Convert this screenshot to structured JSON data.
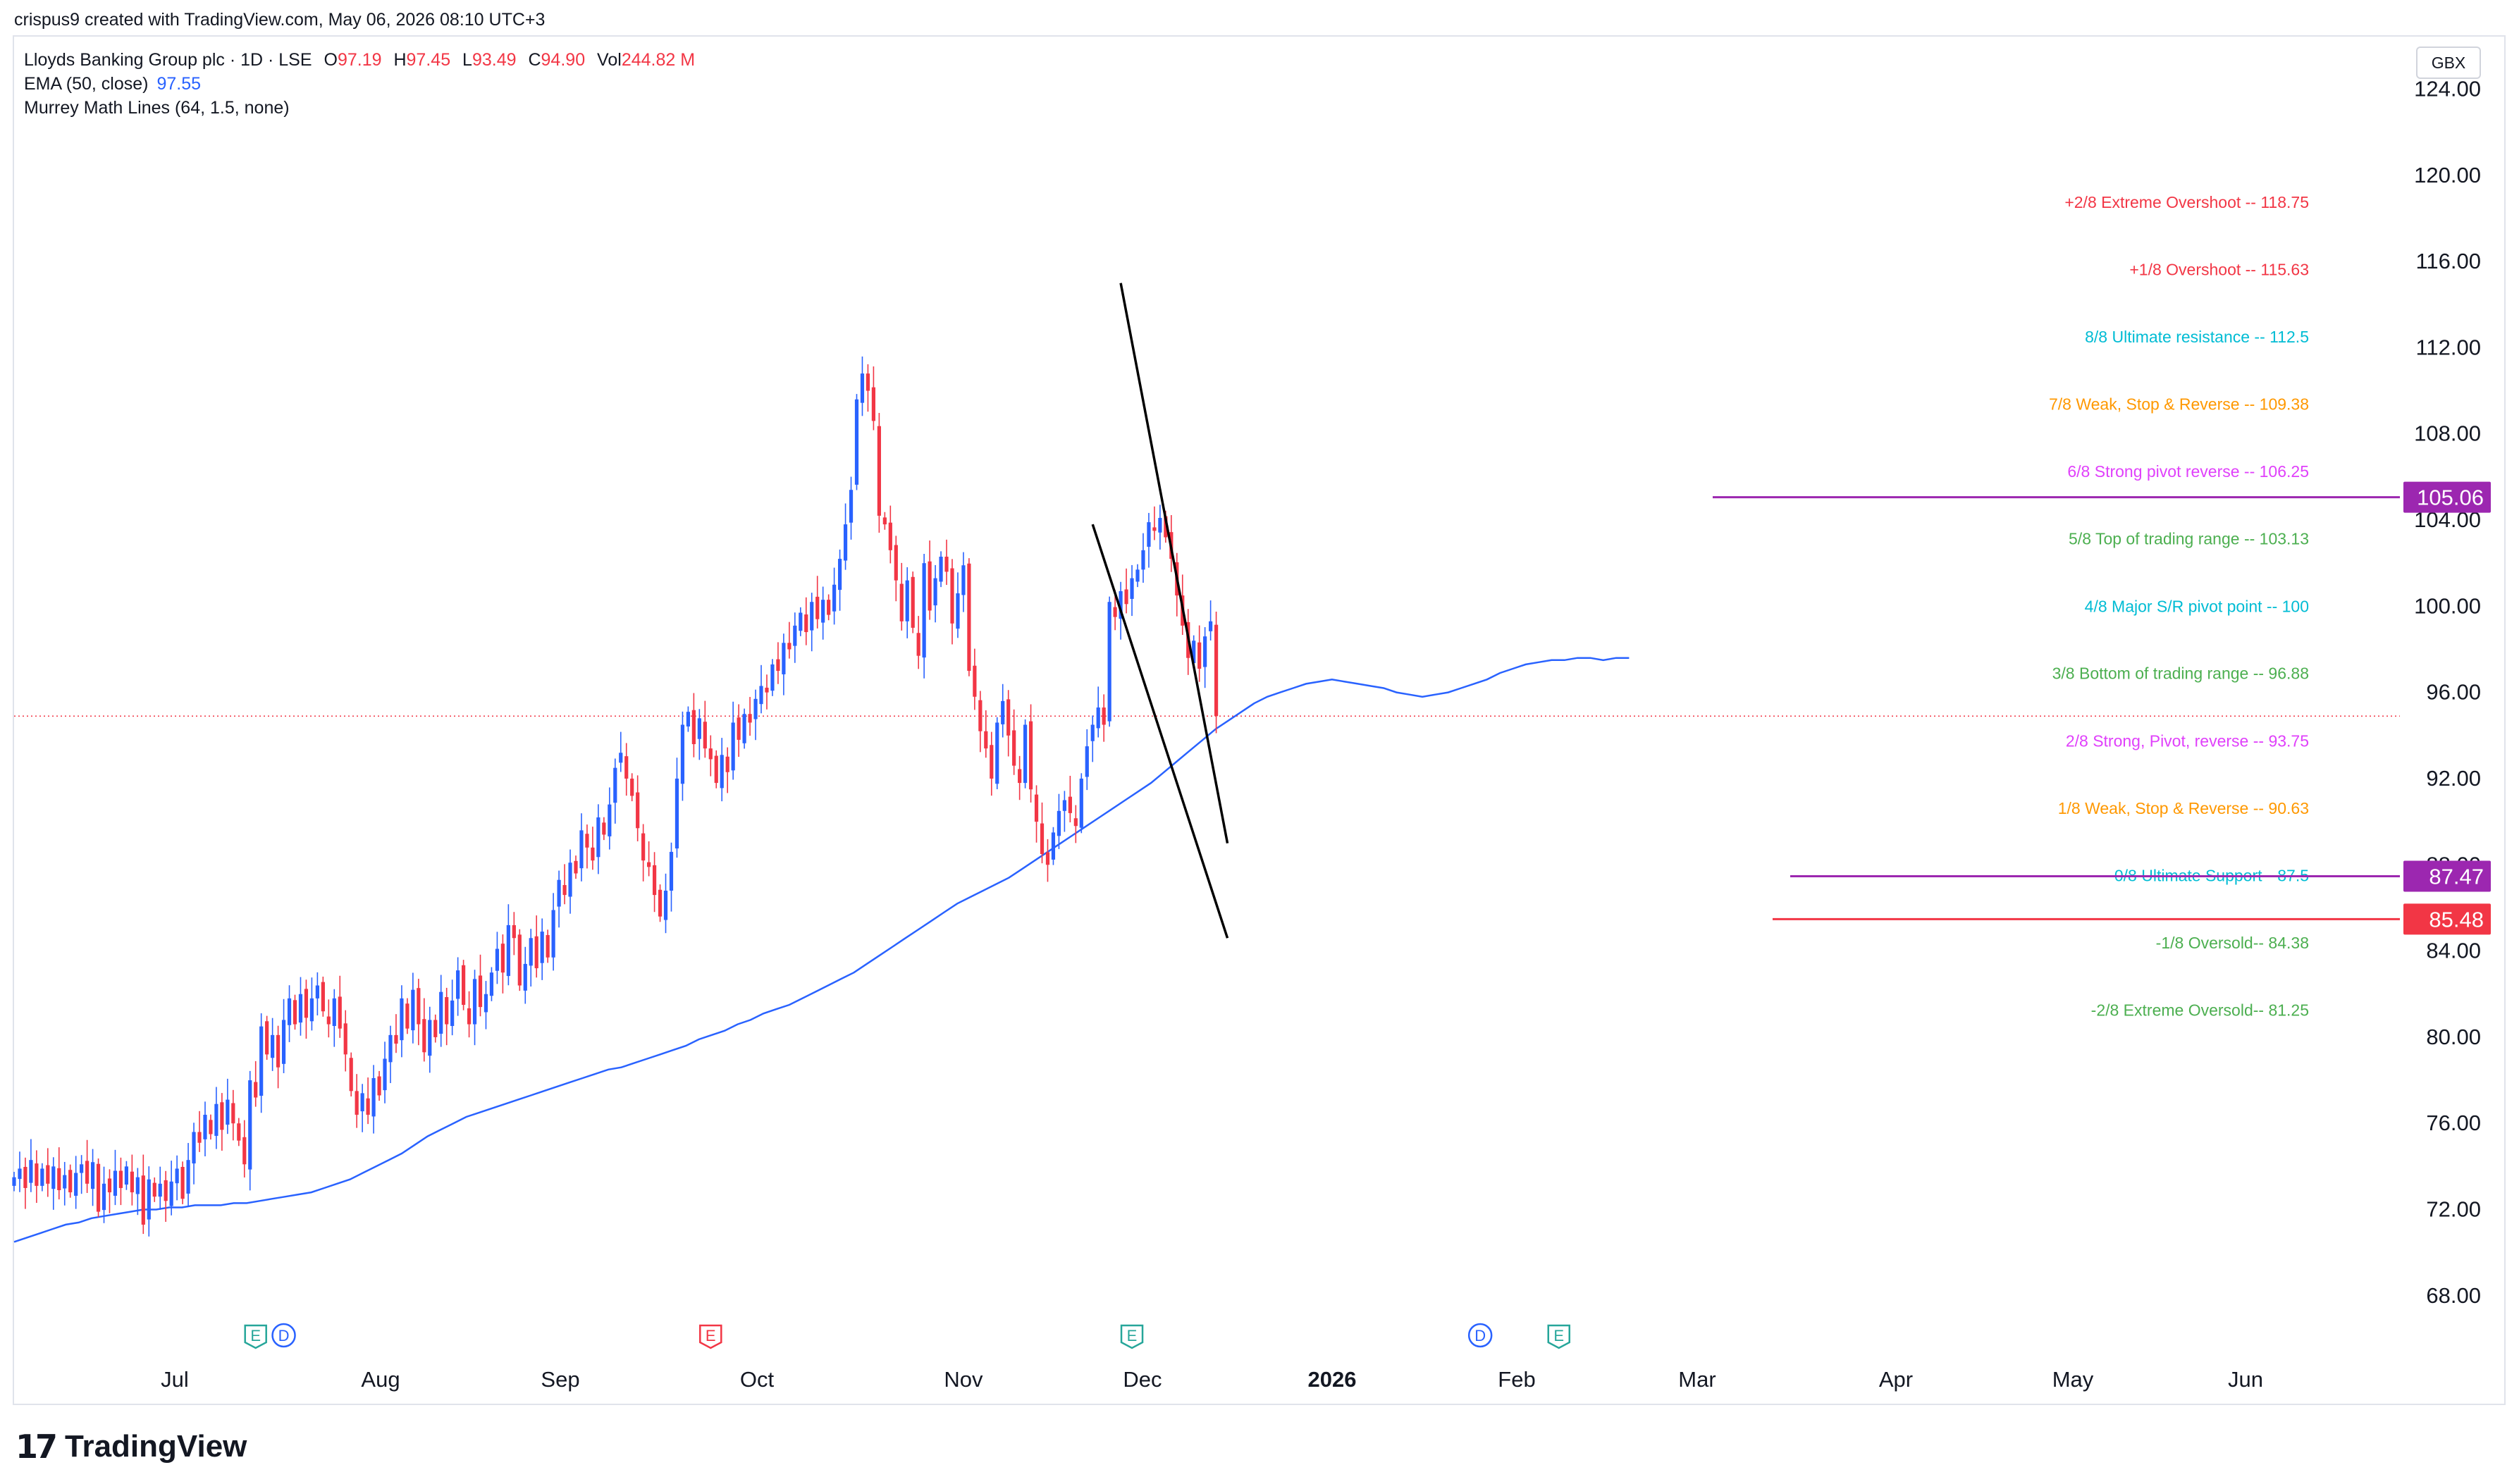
{
  "header": {
    "credit": "crispus9 created with TradingView.com, May 06, 2026 08:10 UTC+3"
  },
  "legend": {
    "symbol": "Lloyds Banking Group plc · 1D · LSE",
    "open_label": "O",
    "open": "97.19",
    "high_label": "H",
    "high": "97.45",
    "low_label": "L",
    "low": "93.49",
    "close_label": "C",
    "close": "94.90",
    "vol_label": "Vol",
    "volume": "244.82 M",
    "ema_label": "EMA (50, close)",
    "ema_value": "97.55",
    "murrey_label": "Murrey Math Lines (64, 1.5, none)"
  },
  "currency": "GBX",
  "footer": {
    "logo_mark": "17",
    "logo_text": "TradingView"
  },
  "colors": {
    "up": "#2962ff",
    "down": "#f23645",
    "ema": "#2962ff",
    "purple": "#9c27b0",
    "red": "#f23645",
    "trend": "#000000",
    "axis_text": "#131722"
  },
  "chart_data": {
    "type": "candlestick",
    "title": "Lloyds Banking Group plc · 1D · LSE",
    "ylim": [
      66,
      126.5
    ],
    "y_ticks": [
      "124.00",
      "120.00",
      "116.00",
      "112.00",
      "108.00",
      "104.00",
      "100.00",
      "96.00",
      "92.00",
      "88.00",
      "84.00",
      "80.00",
      "76.00",
      "72.00",
      "68.00"
    ],
    "x_ticks": [
      {
        "label": "Jul",
        "bold": false
      },
      {
        "label": "Aug",
        "bold": false
      },
      {
        "label": "Sep",
        "bold": false
      },
      {
        "label": "Oct",
        "bold": false
      },
      {
        "label": "Nov",
        "bold": false
      },
      {
        "label": "Dec",
        "bold": false
      },
      {
        "label": "2026",
        "bold": true
      },
      {
        "label": "Feb",
        "bold": false
      },
      {
        "label": "Mar",
        "bold": false
      },
      {
        "label": "Apr",
        "bold": false
      },
      {
        "label": "May",
        "bold": false
      },
      {
        "label": "Jun",
        "bold": false
      }
    ],
    "price_badges": [
      {
        "value": "105.06",
        "price": 105.06,
        "color": "#9c27b0"
      },
      {
        "value": "87.47",
        "price": 87.47,
        "color": "#9c27b0"
      },
      {
        "value": "85.48",
        "price": 85.48,
        "color": "#f23645"
      }
    ],
    "last_price": 94.9,
    "murrey_lines": [
      {
        "label": "+2/8 Extreme Overshoot --  118.75",
        "price": 118.75,
        "color": "#f23645"
      },
      {
        "label": "+1/8 Overshoot --  115.63",
        "price": 115.63,
        "color": "#f23645"
      },
      {
        "label": "8/8 Ultimate resistance --  112.5",
        "price": 112.5,
        "color": "#00bcd4"
      },
      {
        "label": "7/8 Weak, Stop & Reverse --  109.38",
        "price": 109.38,
        "color": "#ff9800"
      },
      {
        "label": "6/8 Strong pivot reverse --  106.25",
        "price": 106.25,
        "color": "#e040fb"
      },
      {
        "label": "5/8 Top of trading range --  103.13",
        "price": 103.13,
        "color": "#4caf50"
      },
      {
        "label": "4/8 Major S/R pivot point --  100",
        "price": 100.0,
        "color": "#00bcd4"
      },
      {
        "label": "3/8 Bottom of trading range --  96.88",
        "price": 96.88,
        "color": "#4caf50"
      },
      {
        "label": "2/8 Strong, Pivot, reverse --  93.75",
        "price": 93.75,
        "color": "#e040fb"
      },
      {
        "label": "1/8 Weak, Stop & Reverse --  90.63",
        "price": 90.63,
        "color": "#ff9800"
      },
      {
        "label": "0/8 Ultimate Support--  87.5",
        "price": 87.5,
        "color": "#00bcd4"
      },
      {
        "label": "-1/8 Oversold--  84.38",
        "price": 84.38,
        "color": "#4caf50"
      },
      {
        "label": "-2/8 Extreme Oversold--  81.25",
        "price": 81.25,
        "color": "#4caf50"
      }
    ],
    "horizontal_lines": [
      {
        "price": 105.06,
        "color": "#9c27b0"
      },
      {
        "price": 87.47,
        "color": "#9c27b0"
      },
      {
        "price": 85.48,
        "color": "#f23645"
      }
    ],
    "trendlines": [
      {
        "t1": 197,
        "p1": 115.0,
        "t2": 216,
        "p2": 89.0
      },
      {
        "t1": 192,
        "p1": 103.8,
        "t2": 216,
        "p2": 84.6
      }
    ],
    "events": [
      {
        "letter": "E",
        "t": 43,
        "color": "#26a69a"
      },
      {
        "letter": "D",
        "t": 48,
        "color": "#2962ff"
      },
      {
        "letter": "E",
        "t": 124,
        "color": "#f23645"
      },
      {
        "letter": "E",
        "t": 199,
        "color": "#26a69a"
      },
      {
        "letter": "D",
        "t": 261,
        "color": "#2962ff"
      },
      {
        "letter": "E",
        "t": 275,
        "color": "#26a69a"
      }
    ],
    "closes": [
      73.5,
      73.9,
      73.0,
      74.3,
      73.1,
      73.9,
      73.2,
      74.0,
      72.9,
      73.6,
      72.8,
      73.7,
      74.1,
      73.2,
      74.2,
      71.9,
      73.2,
      72.8,
      73.8,
      73.0,
      74.0,
      72.8,
      73.5,
      71.3,
      73.4,
      72.6,
      73.2,
      72.4,
      73.3,
      73.9,
      72.5,
      74.3,
      75.6,
      75.1,
      76.4,
      75.5,
      76.9,
      75.7,
      77.1,
      76.0,
      75.2,
      74.1,
      78.0,
      77.2,
      80.5,
      79.2,
      80.1,
      78.6,
      80.8,
      81.8,
      80.6,
      82.0,
      80.9,
      81.8,
      82.4,
      81.2,
      80.6,
      81.8,
      80.4,
      79.2,
      77.5,
      76.4,
      77.4,
      76.4,
      78.1,
      77.3,
      79.0,
      80.1,
      79.7,
      81.8,
      80.4,
      82.2,
      80.6,
      79.3,
      80.8,
      80.0,
      82.1,
      80.6,
      81.7,
      83.1,
      81.5,
      80.6,
      82.7,
      81.4,
      82.0,
      83.0,
      84.1,
      83.0,
      85.2,
      84.6,
      82.4,
      83.4,
      84.6,
      83.2,
      84.9,
      83.7,
      85.9,
      87.3,
      86.6,
      88.1,
      87.6,
      89.6,
      88.8,
      88.2,
      90.2,
      89.4,
      90.8,
      92.5,
      93.2,
      92.0,
      91.2,
      89.7,
      88.2,
      87.9,
      86.6,
      85.6,
      86.8,
      88.6,
      92.0,
      94.5,
      95.1,
      93.6,
      94.8,
      93.4,
      92.9,
      91.8,
      93.1,
      92.3,
      94.6,
      93.8,
      95.0,
      94.6,
      95.7,
      96.3,
      96.0,
      97.3,
      97.0,
      98.3,
      98.0,
      99.1,
      99.7,
      98.8,
      100.2,
      99.4,
      100.3,
      99.6,
      101.0,
      102.2,
      103.8,
      105.4,
      109.6,
      110.8,
      110.0,
      108.6,
      104.2,
      103.8,
      102.6,
      101.2,
      99.3,
      101.2,
      99.0,
      97.7,
      102.0,
      99.8,
      101.3,
      102.3,
      101.6,
      99.2,
      100.6,
      101.9,
      97.0,
      95.8,
      94.2,
      93.4,
      92.0,
      94.6,
      95.6,
      94.0,
      92.6,
      91.8,
      94.5,
      91.5,
      90.0,
      88.5,
      88.0,
      89.5,
      90.5,
      91.0,
      90.4,
      89.8,
      92.0,
      93.5,
      94.5,
      95.3,
      94.5,
      100.2,
      99.5,
      100.7,
      100.1,
      101.3,
      101.7,
      102.6,
      103.9,
      103.5,
      104.1,
      103.2,
      102.2,
      100.5,
      99.1,
      97.6,
      98.4,
      97.1,
      98.6,
      99.3,
      94.9
    ],
    "ema50": [
      70.5,
      70.7,
      70.9,
      71.1,
      71.3,
      71.4,
      71.6,
      71.7,
      71.8,
      71.9,
      72.0,
      72.0,
      72.1,
      72.1,
      72.2,
      72.2,
      72.2,
      72.3,
      72.3,
      72.4,
      72.5,
      72.6,
      72.7,
      72.8,
      73.0,
      73.2,
      73.4,
      73.7,
      74.0,
      74.3,
      74.6,
      75.0,
      75.4,
      75.7,
      76.0,
      76.3,
      76.5,
      76.7,
      76.9,
      77.1,
      77.3,
      77.5,
      77.7,
      77.9,
      78.1,
      78.3,
      78.5,
      78.6,
      78.8,
      79.0,
      79.2,
      79.4,
      79.6,
      79.9,
      80.1,
      80.3,
      80.6,
      80.8,
      81.1,
      81.3,
      81.5,
      81.8,
      82.1,
      82.4,
      82.7,
      83.0,
      83.4,
      83.8,
      84.2,
      84.6,
      85.0,
      85.4,
      85.8,
      86.2,
      86.5,
      86.8,
      87.1,
      87.4,
      87.8,
      88.2,
      88.6,
      89.0,
      89.4,
      89.8,
      90.2,
      90.6,
      91.0,
      91.4,
      91.8,
      92.3,
      92.8,
      93.3,
      93.8,
      94.3,
      94.7,
      95.1,
      95.5,
      95.8,
      96.0,
      96.2,
      96.4,
      96.5,
      96.6,
      96.5,
      96.4,
      96.3,
      96.2,
      96.0,
      95.9,
      95.8,
      95.9,
      96.0,
      96.2,
      96.4,
      96.6,
      96.9,
      97.1,
      97.3,
      97.4,
      97.5,
      97.5,
      97.6,
      97.6,
      97.5,
      97.6,
      97.6
    ]
  }
}
